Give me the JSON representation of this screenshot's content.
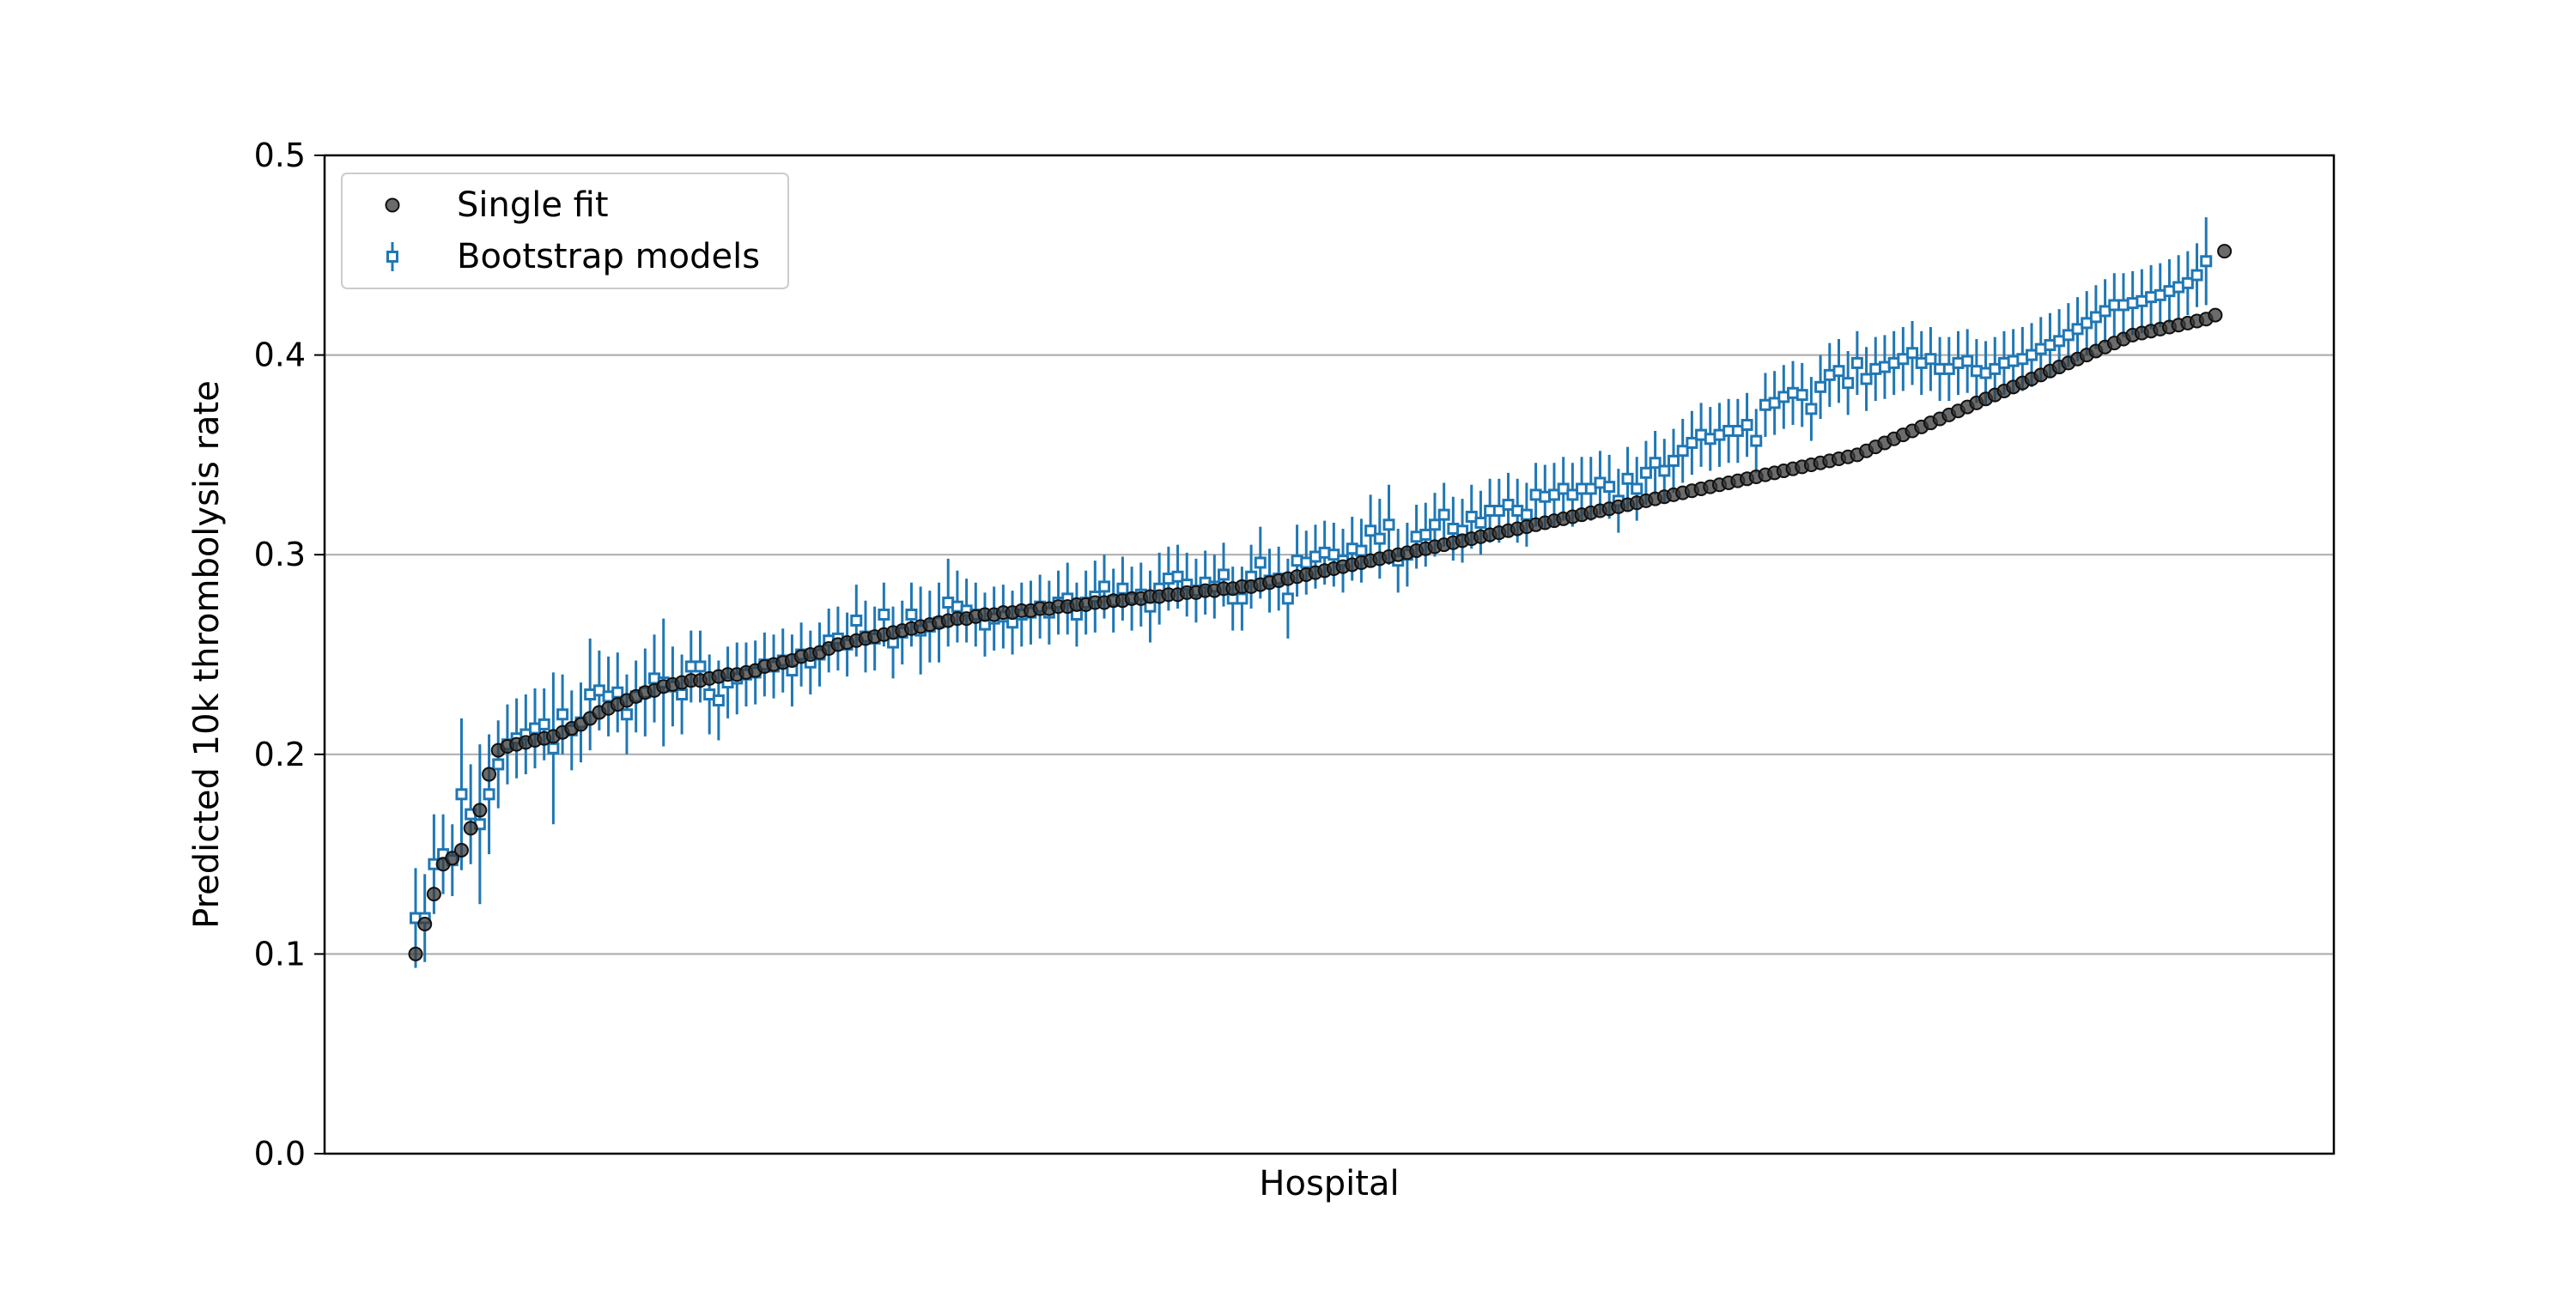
{
  "chart_data": {
    "type": "scatter",
    "xlabel": "Hospital",
    "ylabel": "Predicted 10k thrombolysis rate",
    "ylim": [
      0.0,
      0.5
    ],
    "yticks": [
      "0.0",
      "0.1",
      "0.2",
      "0.3",
      "0.4",
      "0.5"
    ],
    "grid": "horizontal",
    "legend_position": "top-left",
    "x": [
      1,
      2,
      3,
      4,
      5,
      6,
      7,
      8,
      9,
      10,
      11,
      12,
      13,
      14,
      15,
      16,
      17,
      18,
      19,
      20,
      21,
      22,
      23,
      24,
      25,
      26,
      27,
      28,
      29,
      30,
      31,
      32,
      33,
      34,
      35,
      36,
      37,
      38,
      39,
      40,
      41,
      42,
      43,
      44,
      45,
      46,
      47,
      48,
      49,
      50,
      51,
      52,
      53,
      54,
      55,
      56,
      57,
      58,
      59,
      60,
      61,
      62,
      63,
      64,
      65,
      66,
      67,
      68,
      69,
      70,
      71,
      72,
      73,
      74,
      75,
      76,
      77,
      78,
      79,
      80,
      81,
      82,
      83,
      84,
      85,
      86,
      87,
      88,
      89,
      90,
      91,
      92,
      93,
      94,
      95,
      96,
      97,
      98,
      99,
      100,
      101,
      102,
      103,
      104,
      105,
      106,
      107,
      108,
      109,
      110,
      111,
      112,
      113,
      114,
      115,
      116,
      117,
      118,
      119,
      120,
      121,
      122,
      123,
      124,
      125,
      126,
      127,
      128,
      129,
      130,
      131,
      132,
      133,
      134,
      135,
      136,
      137,
      138,
      139,
      140,
      141,
      142,
      143,
      144,
      145,
      146,
      147,
      148,
      149,
      150,
      151,
      152,
      153,
      154,
      155,
      156,
      157,
      158,
      159,
      160,
      161,
      162,
      163,
      164,
      165,
      166,
      167,
      168,
      169,
      170,
      171,
      172,
      173,
      174,
      175,
      176,
      177,
      178,
      179,
      180,
      181,
      182,
      183,
      184,
      185,
      186,
      187,
      188,
      189,
      190,
      191,
      192,
      193,
      194,
      195,
      196,
      197,
      198,
      199,
      200
    ],
    "series": [
      {
        "name": "Single fit",
        "marker": "circle",
        "color": "#3a3a3a",
        "values": [
          0.1,
          0.115,
          0.13,
          0.145,
          0.148,
          0.152,
          0.163,
          0.172,
          0.19,
          0.202,
          0.204,
          0.205,
          0.206,
          0.207,
          0.208,
          0.209,
          0.211,
          0.213,
          0.215,
          0.218,
          0.221,
          0.223,
          0.225,
          0.227,
          0.229,
          0.231,
          0.232,
          0.234,
          0.235,
          0.236,
          0.237,
          0.237,
          0.238,
          0.239,
          0.24,
          0.24,
          0.241,
          0.242,
          0.244,
          0.245,
          0.246,
          0.247,
          0.249,
          0.25,
          0.251,
          0.253,
          0.255,
          0.256,
          0.257,
          0.258,
          0.259,
          0.26,
          0.261,
          0.262,
          0.263,
          0.264,
          0.265,
          0.266,
          0.267,
          0.268,
          0.268,
          0.269,
          0.27,
          0.27,
          0.271,
          0.271,
          0.272,
          0.272,
          0.273,
          0.273,
          0.274,
          0.274,
          0.275,
          0.275,
          0.276,
          0.276,
          0.277,
          0.277,
          0.278,
          0.278,
          0.279,
          0.279,
          0.28,
          0.28,
          0.281,
          0.281,
          0.282,
          0.282,
          0.283,
          0.283,
          0.284,
          0.284,
          0.285,
          0.286,
          0.287,
          0.288,
          0.289,
          0.29,
          0.291,
          0.292,
          0.293,
          0.294,
          0.295,
          0.296,
          0.297,
          0.298,
          0.299,
          0.3,
          0.301,
          0.302,
          0.303,
          0.304,
          0.305,
          0.306,
          0.307,
          0.308,
          0.309,
          0.31,
          0.311,
          0.312,
          0.313,
          0.314,
          0.315,
          0.316,
          0.317,
          0.318,
          0.319,
          0.32,
          0.321,
          0.322,
          0.323,
          0.324,
          0.325,
          0.326,
          0.327,
          0.328,
          0.329,
          0.33,
          0.331,
          0.332,
          0.333,
          0.334,
          0.335,
          0.336,
          0.337,
          0.338,
          0.339,
          0.34,
          0.341,
          0.342,
          0.343,
          0.344,
          0.345,
          0.346,
          0.347,
          0.348,
          0.349,
          0.35,
          0.352,
          0.354,
          0.356,
          0.358,
          0.36,
          0.362,
          0.364,
          0.366,
          0.368,
          0.37,
          0.372,
          0.374,
          0.376,
          0.378,
          0.38,
          0.382,
          0.384,
          0.386,
          0.388,
          0.39,
          0.392,
          0.394,
          0.396,
          0.398,
          0.4,
          0.402,
          0.404,
          0.406,
          0.408,
          0.41,
          0.411,
          0.412,
          0.413,
          0.414,
          0.415,
          0.416,
          0.417,
          0.418,
          0.42,
          0.452
        ]
      },
      {
        "name": "Bootstrap models",
        "marker": "square",
        "color": "#1f77b4",
        "values": [
          0.118,
          0.118,
          0.145,
          0.15,
          0.147,
          0.18,
          0.17,
          0.165,
          0.18,
          0.195,
          0.205,
          0.208,
          0.21,
          0.213,
          0.215,
          0.203,
          0.22,
          0.212,
          0.216,
          0.23,
          0.232,
          0.229,
          0.231,
          0.22,
          0.229,
          0.231,
          0.238,
          0.236,
          0.234,
          0.23,
          0.244,
          0.244,
          0.23,
          0.227,
          0.236,
          0.238,
          0.24,
          0.241,
          0.245,
          0.244,
          0.247,
          0.242,
          0.25,
          0.246,
          0.25,
          0.257,
          0.258,
          0.255,
          0.267,
          0.259,
          0.258,
          0.27,
          0.256,
          0.261,
          0.27,
          0.262,
          0.264,
          0.266,
          0.276,
          0.274,
          0.272,
          0.27,
          0.265,
          0.268,
          0.269,
          0.266,
          0.27,
          0.271,
          0.274,
          0.271,
          0.276,
          0.278,
          0.27,
          0.276,
          0.279,
          0.284,
          0.277,
          0.283,
          0.278,
          0.28,
          0.274,
          0.283,
          0.288,
          0.289,
          0.285,
          0.282,
          0.286,
          0.284,
          0.29,
          0.278,
          0.278,
          0.289,
          0.296,
          0.287,
          0.288,
          0.278,
          0.297,
          0.296,
          0.299,
          0.301,
          0.3,
          0.297,
          0.303,
          0.302,
          0.312,
          0.308,
          0.315,
          0.297,
          0.3,
          0.309,
          0.31,
          0.315,
          0.32,
          0.313,
          0.312,
          0.319,
          0.316,
          0.322,
          0.322,
          0.325,
          0.322,
          0.32,
          0.33,
          0.329,
          0.33,
          0.333,
          0.33,
          0.333,
          0.333,
          0.336,
          0.334,
          0.327,
          0.338,
          0.333,
          0.341,
          0.346,
          0.342,
          0.347,
          0.352,
          0.356,
          0.36,
          0.358,
          0.36,
          0.362,
          0.362,
          0.365,
          0.357,
          0.375,
          0.376,
          0.379,
          0.381,
          0.38,
          0.373,
          0.384,
          0.39,
          0.392,
          0.386,
          0.396,
          0.388,
          0.393,
          0.394,
          0.396,
          0.398,
          0.401,
          0.396,
          0.398,
          0.393,
          0.393,
          0.396,
          0.397,
          0.392,
          0.391,
          0.393,
          0.396,
          0.397,
          0.398,
          0.4,
          0.403,
          0.405,
          0.407,
          0.41,
          0.413,
          0.416,
          0.419,
          0.422,
          0.425,
          0.425,
          0.426,
          0.427,
          0.429,
          0.43,
          0.432,
          0.434,
          0.436,
          0.44,
          0.447
        ],
        "err": [
          0.025,
          0.022,
          0.025,
          0.02,
          0.018,
          0.038,
          0.025,
          0.04,
          0.03,
          0.022,
          0.02,
          0.02,
          0.02,
          0.02,
          0.018,
          0.038,
          0.02,
          0.02,
          0.02,
          0.028,
          0.02,
          0.02,
          0.02,
          0.02,
          0.018,
          0.022,
          0.022,
          0.032,
          0.02,
          0.02,
          0.018,
          0.018,
          0.02,
          0.02,
          0.018,
          0.018,
          0.016,
          0.016,
          0.016,
          0.016,
          0.016,
          0.018,
          0.016,
          0.016,
          0.016,
          0.016,
          0.016,
          0.016,
          0.018,
          0.018,
          0.016,
          0.016,
          0.018,
          0.016,
          0.016,
          0.022,
          0.018,
          0.02,
          0.022,
          0.018,
          0.016,
          0.016,
          0.016,
          0.016,
          0.016,
          0.016,
          0.016,
          0.016,
          0.016,
          0.016,
          0.016,
          0.018,
          0.016,
          0.016,
          0.018,
          0.016,
          0.016,
          0.016,
          0.016,
          0.016,
          0.018,
          0.018,
          0.016,
          0.016,
          0.016,
          0.016,
          0.016,
          0.016,
          0.016,
          0.016,
          0.016,
          0.016,
          0.018,
          0.016,
          0.016,
          0.02,
          0.018,
          0.016,
          0.016,
          0.016,
          0.016,
          0.016,
          0.016,
          0.016,
          0.018,
          0.02,
          0.02,
          0.016,
          0.016,
          0.016,
          0.016,
          0.016,
          0.016,
          0.016,
          0.016,
          0.016,
          0.016,
          0.016,
          0.016,
          0.016,
          0.016,
          0.016,
          0.016,
          0.016,
          0.016,
          0.016,
          0.016,
          0.016,
          0.016,
          0.016,
          0.016,
          0.016,
          0.016,
          0.016,
          0.016,
          0.016,
          0.016,
          0.016,
          0.016,
          0.016,
          0.016,
          0.016,
          0.016,
          0.016,
          0.016,
          0.016,
          0.016,
          0.016,
          0.016,
          0.016,
          0.016,
          0.016,
          0.016,
          0.016,
          0.016,
          0.016,
          0.016,
          0.016,
          0.016,
          0.016,
          0.016,
          0.016,
          0.016,
          0.016,
          0.016,
          0.016,
          0.016,
          0.016,
          0.016,
          0.016,
          0.016,
          0.016,
          0.016,
          0.016,
          0.016,
          0.016,
          0.016,
          0.016,
          0.016,
          0.016,
          0.016,
          0.016,
          0.016,
          0.016,
          0.016,
          0.016,
          0.016,
          0.016,
          0.016,
          0.016,
          0.016,
          0.016,
          0.016,
          0.016,
          0.016,
          0.022
        ]
      }
    ]
  }
}
